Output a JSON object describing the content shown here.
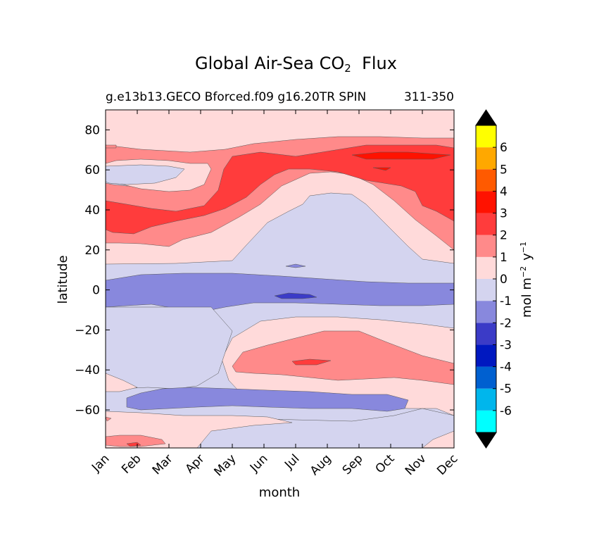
{
  "chart_data": {
    "type": "contour",
    "title": "Global Air-Sea CO",
    "title_subscript": "2",
    "title_suffix": "Flux",
    "subtitle_left": "g.e13b13.GECO Bforced.f09 g16.20TR SPIN",
    "subtitle_right": "311-350",
    "xlabel": "month",
    "ylabel": "latitude",
    "x_categories": [
      "Jan",
      "Feb",
      "Mar",
      "Apr",
      "May",
      "Jun",
      "Jul",
      "Aug",
      "Sep",
      "Oct",
      "Nov",
      "Dec"
    ],
    "y_ticks": [
      "80",
      "60",
      "40",
      "20",
      "0",
      "−20",
      "−40",
      "−60"
    ],
    "y_tick_values": [
      80,
      60,
      40,
      20,
      0,
      -20,
      -40,
      -60
    ],
    "ylim": [
      -79,
      90
    ],
    "grid": false,
    "colorbar": {
      "label": "mol m⁻² y⁻¹",
      "label_main": "mol m",
      "label_exp1": "−2",
      "label_mid": "y",
      "label_exp2": "−1",
      "levels": [
        -7,
        -6,
        -5,
        -4,
        -3,
        -2,
        -1,
        0,
        1,
        2,
        3,
        4,
        5,
        6,
        7
      ],
      "tick_labels": [
        "6",
        "5",
        "4",
        "3",
        "2",
        "1",
        "0",
        "-1",
        "-2",
        "-3",
        "-4",
        "-5",
        "-6"
      ],
      "colors": [
        "#00ffff",
        "#00b6ec",
        "#0060d0",
        "#0018c0",
        "#3b3bc7",
        "#8888dd",
        "#d4d4ef",
        "#ffdada",
        "#ff8a8a",
        "#ff3c3c",
        "#ff1200",
        "#ff5a00",
        "#ffa800",
        "#ffff00"
      ],
      "extend_color": "#000000"
    },
    "regions": [
      {
        "band": "north 70-90",
        "level": "0 to 1",
        "color": "#ffdada"
      },
      {
        "band": "north 25-70",
        "level": "1 to 3",
        "color": "#ff3c3c"
      },
      {
        "band": "north 60-70 Sep-Dec",
        "level": "2 to 3",
        "color": "#ff1200"
      },
      {
        "band": "tropics 12 to 48 summer",
        "level": "-1 to 0",
        "color": "#d4d4ef"
      },
      {
        "band": "equator -10 to 8",
        "level": "-2 to -1",
        "color": "#8888dd"
      },
      {
        "band": "equator Jul",
        "level": "-3 to -2",
        "color": "#3b3bc7"
      },
      {
        "band": "south -20 to -48",
        "level": "0 to 2",
        "color": "#ff8a8a"
      },
      {
        "band": "south -50 to -60",
        "level": "-2 to -1",
        "color": "#8888dd"
      },
      {
        "band": "south -60 to -79",
        "level": "-1 to 1",
        "color": "#d4d4ef"
      }
    ]
  }
}
